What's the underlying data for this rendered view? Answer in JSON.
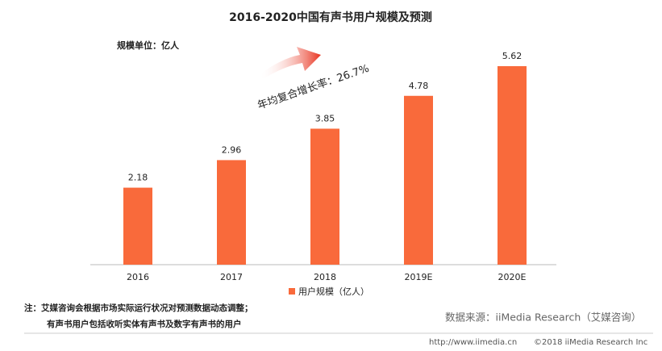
{
  "chart_data": {
    "type": "bar",
    "title": "2016-2020中国有声书用户规模及预测",
    "unit_label": "规模单位：亿人",
    "annotation": "年均复合增长率：26.7%",
    "categories": [
      "2016",
      "2017",
      "2018",
      "2019E",
      "2020E"
    ],
    "series": [
      {
        "name": "用户规模（亿人）",
        "color": "#f96a3b",
        "values": [
          2.18,
          2.96,
          3.85,
          4.78,
          5.62
        ]
      }
    ]
  },
  "notes": [
    "注：艾媒咨询会根据市场实际运行状况对预测数据动态调整；",
    "有声书用户包括收听实体有声书及数字有声书的用户"
  ],
  "source": "数据来源：iiMedia Research（艾媒咨询）",
  "footer": {
    "url": "http://www.iimedia.cn",
    "copyright": "©2018  iiMedia Research  Inc"
  }
}
